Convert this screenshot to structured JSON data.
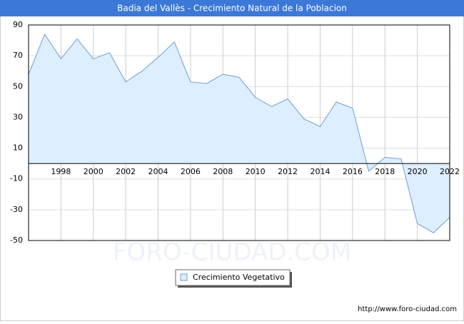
{
  "chart_data": {
    "type": "area",
    "title": "Badia del Vallès - Crecimiento Natural de la Poblacion",
    "x": [
      1996,
      1997,
      1998,
      1999,
      2000,
      2001,
      2002,
      2003,
      2004,
      2005,
      2006,
      2007,
      2008,
      2009,
      2010,
      2011,
      2012,
      2013,
      2014,
      2015,
      2016,
      2017,
      2018,
      2019,
      2020,
      2021,
      2022
    ],
    "series": [
      {
        "name": "Crecimiento Vegetativo",
        "color": "#6b9fd4",
        "fill": "#ddeeff",
        "values": [
          58,
          84,
          68,
          81,
          68,
          72,
          53,
          60,
          69,
          79,
          53,
          52,
          58,
          56,
          43,
          37,
          42,
          29,
          24,
          40,
          36,
          -5,
          4,
          3,
          -39,
          -45,
          -35
        ]
      }
    ],
    "xlim": [
      1996,
      2022
    ],
    "xticks": [
      1998,
      2000,
      2002,
      2004,
      2006,
      2008,
      2010,
      2012,
      2014,
      2016,
      2018,
      2020,
      2022
    ],
    "ylim": [
      -50,
      90
    ],
    "yticks": [
      90,
      70,
      50,
      30,
      10,
      -10,
      -30,
      -50
    ],
    "grid": true,
    "legend": "bottom",
    "watermark": "FORO-CIUDAD.COM",
    "source": "http://www.foro-ciudad.com"
  }
}
